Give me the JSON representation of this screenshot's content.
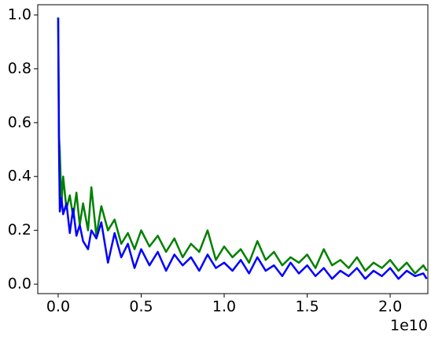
{
  "chart_data": {
    "type": "line",
    "x": [
      0,
      0.005,
      0.01,
      0.02,
      0.03,
      0.05,
      0.07,
      0.09,
      0.11,
      0.13,
      0.15,
      0.18,
      0.2,
      0.23,
      0.26,
      0.3,
      0.34,
      0.38,
      0.42,
      0.46,
      0.5,
      0.55,
      0.6,
      0.65,
      0.7,
      0.75,
      0.8,
      0.85,
      0.9,
      0.95,
      1.0,
      1.05,
      1.1,
      1.15,
      1.2,
      1.25,
      1.3,
      1.35,
      1.4,
      1.45,
      1.5,
      1.55,
      1.6,
      1.65,
      1.7,
      1.75,
      1.8,
      1.85,
      1.9,
      1.95,
      2.0,
      2.05,
      2.1,
      2.15,
      2.2,
      2.22
    ],
    "series": [
      {
        "color": "#008000",
        "values": [
          0.99,
          0.55,
          0.49,
          0.3,
          0.4,
          0.28,
          0.33,
          0.25,
          0.34,
          0.22,
          0.3,
          0.2,
          0.36,
          0.18,
          0.29,
          0.2,
          0.24,
          0.15,
          0.19,
          0.13,
          0.2,
          0.14,
          0.18,
          0.12,
          0.17,
          0.1,
          0.15,
          0.12,
          0.2,
          0.09,
          0.14,
          0.1,
          0.13,
          0.08,
          0.16,
          0.09,
          0.12,
          0.07,
          0.1,
          0.08,
          0.11,
          0.06,
          0.13,
          0.07,
          0.09,
          0.06,
          0.1,
          0.05,
          0.08,
          0.06,
          0.09,
          0.05,
          0.08,
          0.04,
          0.07,
          0.05
        ]
      },
      {
        "color": "#0000ff",
        "values": [
          0.99,
          0.5,
          0.27,
          0.32,
          0.26,
          0.3,
          0.19,
          0.28,
          0.18,
          0.22,
          0.16,
          0.13,
          0.2,
          0.17,
          0.23,
          0.08,
          0.19,
          0.1,
          0.15,
          0.06,
          0.13,
          0.07,
          0.12,
          0.05,
          0.11,
          0.07,
          0.1,
          0.05,
          0.11,
          0.06,
          0.08,
          0.05,
          0.09,
          0.04,
          0.1,
          0.05,
          0.07,
          0.03,
          0.08,
          0.04,
          0.07,
          0.03,
          0.06,
          0.02,
          0.05,
          0.03,
          0.06,
          0.02,
          0.05,
          0.03,
          0.06,
          0.02,
          0.05,
          0.03,
          0.04,
          0.02
        ]
      }
    ],
    "xlim": [
      -0.123,
      2.227
    ],
    "ylim": [
      -0.035,
      1.038
    ],
    "xticks": [
      {
        "value": 0,
        "label": "0.0"
      },
      {
        "value": 0.5,
        "label": "0.5"
      },
      {
        "value": 1,
        "label": "1.0"
      },
      {
        "value": 1.5,
        "label": "1.5"
      },
      {
        "value": 2,
        "label": "2.0"
      }
    ],
    "yticks": [
      {
        "value": 0,
        "label": "0.0"
      },
      {
        "value": 0.2,
        "label": "0.2"
      },
      {
        "value": 0.4,
        "label": "0.4"
      },
      {
        "value": 0.6,
        "label": "0.6"
      },
      {
        "value": 0.8,
        "label": "0.8"
      },
      {
        "value": 1,
        "label": "1.0"
      }
    ],
    "x_offset_label": "1e10",
    "grid": false
  }
}
